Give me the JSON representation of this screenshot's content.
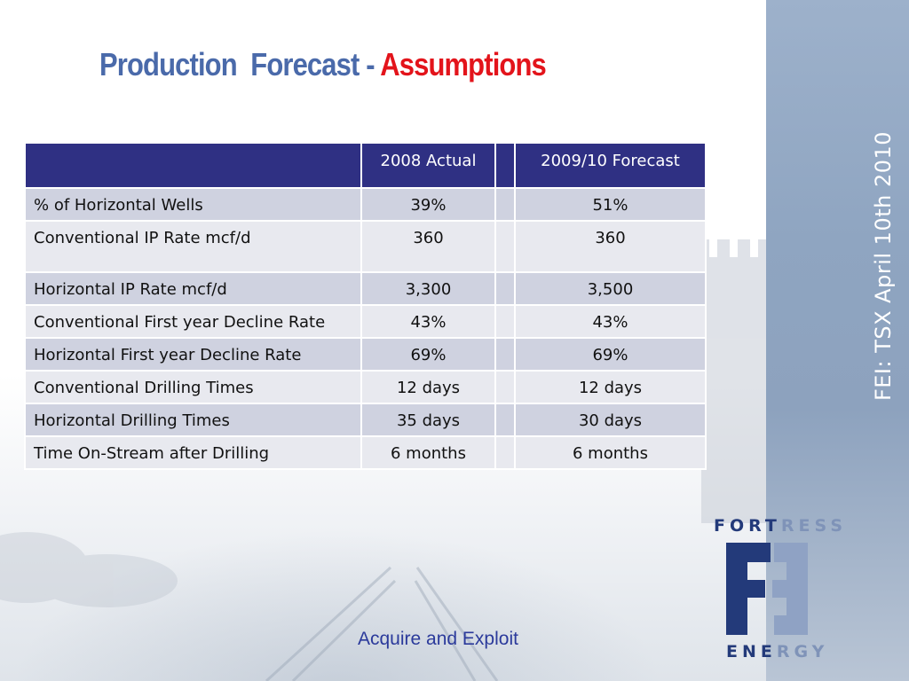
{
  "slide": {
    "title_part1": "Production",
    "title_part2": "Forecast -",
    "title_part3": "Assumptions",
    "side_text": "FEI: TSX April 10th 2010",
    "footer": "Acquire and Exploit"
  },
  "table": {
    "headers": [
      "",
      "2008 Actual",
      "",
      "2009/10 Forecast"
    ],
    "rows": [
      {
        "label": "% of Horizontal Wells",
        "actual": "39%",
        "forecast": "51%"
      },
      {
        "label": "Conventional IP Rate mcf/d",
        "actual": "360",
        "forecast": "360"
      },
      {
        "label": "Horizontal IP Rate mcf/d",
        "actual": "3,300",
        "forecast": "3,500"
      },
      {
        "label": "Conventional First year Decline Rate",
        "actual": "43%",
        "forecast": "43%"
      },
      {
        "label": "Horizontal First year Decline Rate",
        "actual": "69%",
        "forecast": "69%"
      },
      {
        "label": "Conventional Drilling Times",
        "actual": "12 days",
        "forecast": "12 days"
      },
      {
        "label": "Horizontal Drilling Times",
        "actual": "35 days",
        "forecast": "30 days"
      },
      {
        "label": "Time On-Stream after Drilling",
        "actual": "6 months",
        "forecast": "6 months"
      }
    ]
  },
  "logo": {
    "top_dark": "FORT",
    "top_light": "RESS",
    "bottom_dark": "ENE",
    "bottom_light": "RGY"
  },
  "colors": {
    "header_bg": "#2f3083",
    "title_blue": "#4a6aaa",
    "title_red": "#e3141b",
    "side_band": "#8fa5c1",
    "footer_text": "#2b3a9b"
  }
}
